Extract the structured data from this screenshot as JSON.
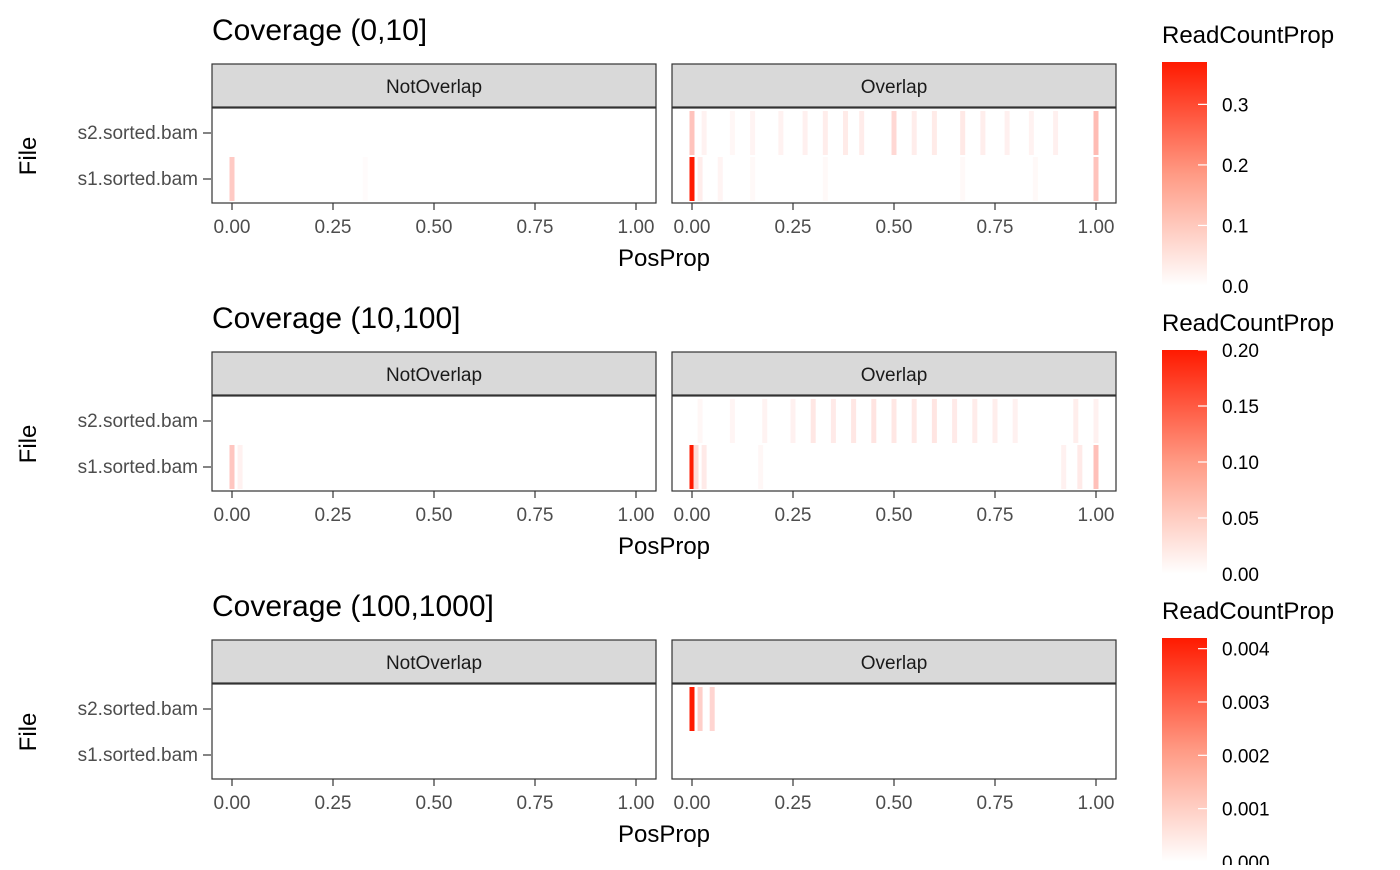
{
  "chart_data": [
    {
      "type": "heatmap",
      "title": "Coverage (0,10]",
      "xlabel": "PosProp",
      "ylabel": "File",
      "facets": [
        "NotOverlap",
        "Overlap"
      ],
      "rows": [
        "s2.sorted.bam",
        "s1.sorted.bam"
      ],
      "xlim": [
        0,
        1
      ],
      "x_ticks": [
        "0.00",
        "0.25",
        "0.50",
        "0.75",
        "1.00"
      ],
      "legend": {
        "title": "ReadCountProp",
        "ticks": [
          {
            "value": 0.3,
            "label": "0.3"
          },
          {
            "value": 0.2,
            "label": "0.2"
          },
          {
            "value": 0.1,
            "label": "0.1"
          },
          {
            "value": 0,
            "label": "0.0"
          }
        ],
        "max": 0.37
      },
      "cells": [
        {
          "facet": "NotOverlap",
          "file": "s1.sorted.bam",
          "x": 0.0,
          "value": 0.06
        },
        {
          "facet": "NotOverlap",
          "file": "s1.sorted.bam",
          "x": 0.33,
          "value": 0.002
        },
        {
          "facet": "Overlap",
          "file": "s2.sorted.bam",
          "x": 0.0,
          "value": 0.07
        },
        {
          "facet": "Overlap",
          "file": "s2.sorted.bam",
          "x": 0.03,
          "value": 0.01
        },
        {
          "facet": "Overlap",
          "file": "s2.sorted.bam",
          "x": 0.1,
          "value": 0.006
        },
        {
          "facet": "Overlap",
          "file": "s2.sorted.bam",
          "x": 0.15,
          "value": 0.008
        },
        {
          "facet": "Overlap",
          "file": "s2.sorted.bam",
          "x": 0.22,
          "value": 0.01
        },
        {
          "facet": "Overlap",
          "file": "s2.sorted.bam",
          "x": 0.28,
          "value": 0.012
        },
        {
          "facet": "Overlap",
          "file": "s2.sorted.bam",
          "x": 0.33,
          "value": 0.015
        },
        {
          "facet": "Overlap",
          "file": "s2.sorted.bam",
          "x": 0.38,
          "value": 0.018
        },
        {
          "facet": "Overlap",
          "file": "s2.sorted.bam",
          "x": 0.42,
          "value": 0.016
        },
        {
          "facet": "Overlap",
          "file": "s2.sorted.bam",
          "x": 0.5,
          "value": 0.04
        },
        {
          "facet": "Overlap",
          "file": "s2.sorted.bam",
          "x": 0.55,
          "value": 0.015
        },
        {
          "facet": "Overlap",
          "file": "s2.sorted.bam",
          "x": 0.6,
          "value": 0.018
        },
        {
          "facet": "Overlap",
          "file": "s2.sorted.bam",
          "x": 0.67,
          "value": 0.02
        },
        {
          "facet": "Overlap",
          "file": "s2.sorted.bam",
          "x": 0.72,
          "value": 0.014
        },
        {
          "facet": "Overlap",
          "file": "s2.sorted.bam",
          "x": 0.78,
          "value": 0.012
        },
        {
          "facet": "Overlap",
          "file": "s2.sorted.bam",
          "x": 0.84,
          "value": 0.01
        },
        {
          "facet": "Overlap",
          "file": "s2.sorted.bam",
          "x": 0.9,
          "value": 0.012
        },
        {
          "facet": "Overlap",
          "file": "s2.sorted.bam",
          "x": 1.0,
          "value": 0.08
        },
        {
          "facet": "Overlap",
          "file": "s1.sorted.bam",
          "x": 0.0,
          "value": 0.37
        },
        {
          "facet": "Overlap",
          "file": "s1.sorted.bam",
          "x": 0.02,
          "value": 0.015
        },
        {
          "facet": "Overlap",
          "file": "s1.sorted.bam",
          "x": 0.07,
          "value": 0.008
        },
        {
          "facet": "Overlap",
          "file": "s1.sorted.bam",
          "x": 0.15,
          "value": 0.004
        },
        {
          "facet": "Overlap",
          "file": "s1.sorted.bam",
          "x": 0.33,
          "value": 0.004
        },
        {
          "facet": "Overlap",
          "file": "s1.sorted.bam",
          "x": 0.67,
          "value": 0.004
        },
        {
          "facet": "Overlap",
          "file": "s1.sorted.bam",
          "x": 0.85,
          "value": 0.004
        },
        {
          "facet": "Overlap",
          "file": "s1.sorted.bam",
          "x": 1.0,
          "value": 0.07
        }
      ]
    },
    {
      "type": "heatmap",
      "title": "Coverage (10,100]",
      "xlabel": "PosProp",
      "ylabel": "File",
      "facets": [
        "NotOverlap",
        "Overlap"
      ],
      "rows": [
        "s2.sorted.bam",
        "s1.sorted.bam"
      ],
      "xlim": [
        0,
        1
      ],
      "x_ticks": [
        "0.00",
        "0.25",
        "0.50",
        "0.75",
        "1.00"
      ],
      "legend": {
        "title": "ReadCountProp",
        "ticks": [
          {
            "value": 0.2,
            "label": "0.20"
          },
          {
            "value": 0.15,
            "label": "0.15"
          },
          {
            "value": 0.1,
            "label": "0.10"
          },
          {
            "value": 0.05,
            "label": "0.05"
          },
          {
            "value": 0,
            "label": "0.00"
          }
        ],
        "max": 0.2
      },
      "cells": [
        {
          "facet": "NotOverlap",
          "file": "s1.sorted.bam",
          "x": 0.0,
          "value": 0.035
        },
        {
          "facet": "NotOverlap",
          "file": "s1.sorted.bam",
          "x": 0.02,
          "value": 0.006
        },
        {
          "facet": "Overlap",
          "file": "s2.sorted.bam",
          "x": 0.02,
          "value": 0.003
        },
        {
          "facet": "Overlap",
          "file": "s2.sorted.bam",
          "x": 0.1,
          "value": 0.004
        },
        {
          "facet": "Overlap",
          "file": "s2.sorted.bam",
          "x": 0.18,
          "value": 0.005
        },
        {
          "facet": "Overlap",
          "file": "s2.sorted.bam",
          "x": 0.25,
          "value": 0.006
        },
        {
          "facet": "Overlap",
          "file": "s2.sorted.bam",
          "x": 0.3,
          "value": 0.012
        },
        {
          "facet": "Overlap",
          "file": "s2.sorted.bam",
          "x": 0.35,
          "value": 0.01
        },
        {
          "facet": "Overlap",
          "file": "s2.sorted.bam",
          "x": 0.4,
          "value": 0.012
        },
        {
          "facet": "Overlap",
          "file": "s2.sorted.bam",
          "x": 0.45,
          "value": 0.014
        },
        {
          "facet": "Overlap",
          "file": "s2.sorted.bam",
          "x": 0.5,
          "value": 0.012
        },
        {
          "facet": "Overlap",
          "file": "s2.sorted.bam",
          "x": 0.55,
          "value": 0.011
        },
        {
          "facet": "Overlap",
          "file": "s2.sorted.bam",
          "x": 0.6,
          "value": 0.013
        },
        {
          "facet": "Overlap",
          "file": "s2.sorted.bam",
          "x": 0.65,
          "value": 0.01
        },
        {
          "facet": "Overlap",
          "file": "s2.sorted.bam",
          "x": 0.7,
          "value": 0.009
        },
        {
          "facet": "Overlap",
          "file": "s2.sorted.bam",
          "x": 0.75,
          "value": 0.008
        },
        {
          "facet": "Overlap",
          "file": "s2.sorted.bam",
          "x": 0.8,
          "value": 0.006
        },
        {
          "facet": "Overlap",
          "file": "s2.sorted.bam",
          "x": 0.95,
          "value": 0.008
        },
        {
          "facet": "Overlap",
          "file": "s2.sorted.bam",
          "x": 1.0,
          "value": 0.006
        },
        {
          "facet": "Overlap",
          "file": "s1.sorted.bam",
          "x": 0.0,
          "value": 0.2
        },
        {
          "facet": "Overlap",
          "file": "s1.sorted.bam",
          "x": 0.01,
          "value": 0.02
        },
        {
          "facet": "Overlap",
          "file": "s1.sorted.bam",
          "x": 0.03,
          "value": 0.01
        },
        {
          "facet": "Overlap",
          "file": "s1.sorted.bam",
          "x": 0.17,
          "value": 0.003
        },
        {
          "facet": "Overlap",
          "file": "s1.sorted.bam",
          "x": 0.92,
          "value": 0.006
        },
        {
          "facet": "Overlap",
          "file": "s1.sorted.bam",
          "x": 0.96,
          "value": 0.01
        },
        {
          "facet": "Overlap",
          "file": "s1.sorted.bam",
          "x": 1.0,
          "value": 0.04
        }
      ]
    },
    {
      "type": "heatmap",
      "title": "Coverage (100,1000]",
      "xlabel": "PosProp",
      "ylabel": "File",
      "facets": [
        "NotOverlap",
        "Overlap"
      ],
      "rows": [
        "s2.sorted.bam",
        "s1.sorted.bam"
      ],
      "xlim": [
        0,
        1
      ],
      "x_ticks": [
        "0.00",
        "0.25",
        "0.50",
        "0.75",
        "1.00"
      ],
      "legend": {
        "title": "ReadCountProp",
        "ticks": [
          {
            "value": 0.004,
            "label": "0.004"
          },
          {
            "value": 0.003,
            "label": "0.003"
          },
          {
            "value": 0.002,
            "label": "0.002"
          },
          {
            "value": 0.001,
            "label": "0.001"
          },
          {
            "value": 0,
            "label": "0.000"
          }
        ],
        "max": 0.0042
      },
      "cells": [
        {
          "facet": "Overlap",
          "file": "s2.sorted.bam",
          "x": 0.0,
          "value": 0.0042
        },
        {
          "facet": "Overlap",
          "file": "s2.sorted.bam",
          "x": 0.02,
          "value": 0.0006
        },
        {
          "facet": "Overlap",
          "file": "s2.sorted.bam",
          "x": 0.05,
          "value": 0.0005
        }
      ]
    }
  ]
}
